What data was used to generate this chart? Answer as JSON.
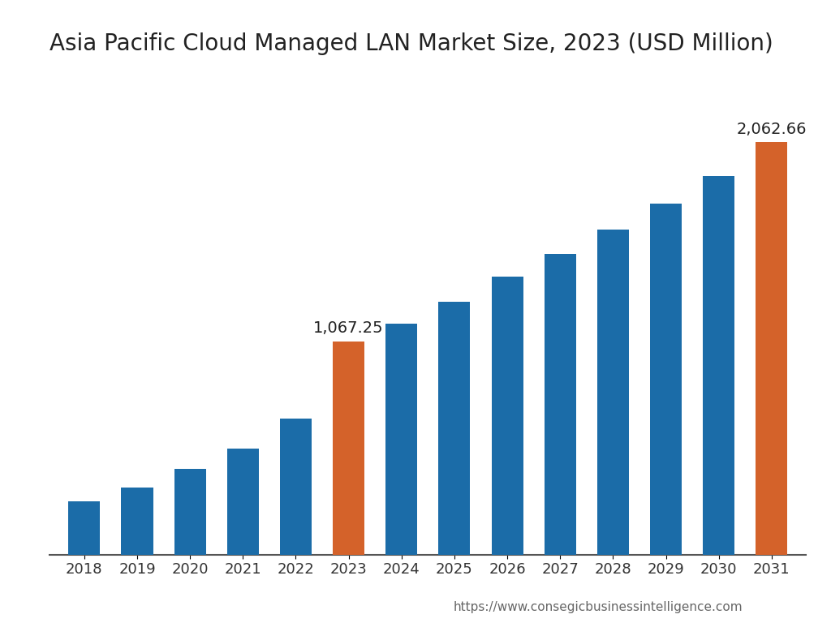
{
  "title": "Asia Pacific Cloud Managed LAN Market Size, 2023 (USD Million)",
  "years": [
    2018,
    2019,
    2020,
    2021,
    2022,
    2023,
    2024,
    2025,
    2026,
    2027,
    2028,
    2029,
    2030,
    2031
  ],
  "values": [
    265,
    335,
    430,
    530,
    680,
    1067.25,
    1155,
    1265,
    1390,
    1505,
    1625,
    1755,
    1895,
    2062.66
  ],
  "bar_colors": [
    "#1b6ca8",
    "#1b6ca8",
    "#1b6ca8",
    "#1b6ca8",
    "#1b6ca8",
    "#d4622a",
    "#1b6ca8",
    "#1b6ca8",
    "#1b6ca8",
    "#1b6ca8",
    "#1b6ca8",
    "#1b6ca8",
    "#1b6ca8",
    "#d4622a"
  ],
  "annotated_bars": [
    5,
    13
  ],
  "annotated_labels": [
    "1,067.25",
    "2,062.66"
  ],
  "ylim": [
    0,
    2400
  ],
  "background_color": "#ffffff",
  "title_fontsize": 20,
  "tick_fontsize": 13,
  "annotation_fontsize": 14,
  "url_text": "https://www.consegicbusinessintelligence.com",
  "url_fontsize": 11
}
